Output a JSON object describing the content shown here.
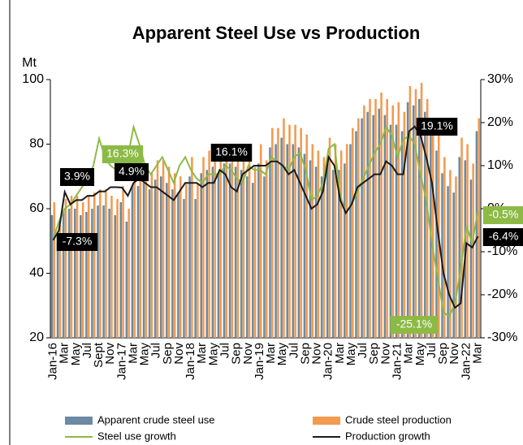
{
  "chart_data": {
    "type": "bar-line",
    "title": "Apparent Steel Use vs Production",
    "y_label": "Mt",
    "categories": [
      "Jan-16",
      null,
      "Mar",
      null,
      "May",
      null,
      "Jul",
      null,
      "Sept",
      null,
      "Nov",
      null,
      "Jan-17",
      null,
      "Mar",
      null,
      "May",
      null,
      "Jul",
      null,
      "Sep",
      null,
      "Nov",
      null,
      "Jan-18",
      null,
      "Mar",
      null,
      "May",
      null,
      "Jul",
      null,
      "Sep",
      null,
      "Nov",
      null,
      "Jan-19",
      null,
      "Mar",
      null,
      "May",
      null,
      "Jul",
      null,
      "Sep",
      null,
      "Nov",
      null,
      "Jan-20",
      null,
      "Mar",
      null,
      "May",
      null,
      "Jul",
      null,
      "Sep",
      null,
      "Nov",
      null,
      "Jan-21",
      null,
      "Mar",
      null,
      "May",
      null,
      "Jul",
      null,
      "Sep",
      null,
      "Nov",
      null,
      "Jan-22",
      null,
      "Mar"
    ],
    "series": [
      {
        "name": "Apparent crude steel use",
        "kind": "bar",
        "color": "#6b8aa3",
        "values": [
          58,
          50,
          59,
          60,
          60,
          58,
          59,
          60,
          61,
          61,
          60,
          58,
          62,
          56,
          67,
          67,
          68,
          66,
          69,
          70,
          68,
          66,
          65,
          63,
          70,
          63,
          71,
          72,
          73,
          71,
          74,
          74,
          73,
          72,
          70,
          68,
          74,
          70,
          79,
          80,
          82,
          80,
          80,
          79,
          77,
          75,
          73,
          70,
          76,
          72,
          72,
          74,
          80,
          84,
          88,
          90,
          89,
          91,
          89,
          86,
          86,
          84,
          93,
          92,
          94,
          90,
          84,
          78,
          71,
          67,
          65,
          76,
          75,
          69,
          84
        ]
      },
      {
        "name": "Crude steel production",
        "kind": "bar",
        "color": "#f39a4f",
        "values": [
          62,
          55,
          63,
          64,
          64,
          62,
          64,
          65,
          66,
          66,
          64,
          63,
          67,
          60,
          72,
          72,
          74,
          71,
          75,
          75,
          73,
          71,
          70,
          68,
          76,
          68,
          76,
          78,
          79,
          77,
          80,
          80,
          79,
          78,
          76,
          73,
          80,
          75,
          85,
          85,
          88,
          86,
          86,
          85,
          83,
          80,
          78,
          76,
          82,
          80,
          78,
          80,
          85,
          88,
          92,
          94,
          94,
          96,
          94,
          92,
          93,
          90,
          98,
          97,
          99,
          94,
          88,
          83,
          76,
          72,
          70,
          82,
          80,
          74,
          88
        ]
      },
      {
        "name": "Steel use growth",
        "kind": "line",
        "axis": "y2",
        "color": "#8dba46",
        "values": [
          -7,
          -3,
          0,
          1,
          3,
          5,
          7,
          10,
          16.3,
          12,
          10,
          9,
          9,
          12,
          19,
          15,
          10,
          8,
          10,
          12,
          9,
          6,
          10,
          12,
          9,
          7,
          6,
          8,
          8,
          8,
          10,
          9,
          7,
          6,
          10,
          9,
          9,
          8,
          12,
          11,
          10,
          9,
          12,
          13,
          9,
          2,
          3,
          6,
          14,
          15,
          3,
          -1,
          1,
          4,
          7,
          10,
          13,
          15,
          19,
          17,
          12,
          16,
          17,
          15,
          8,
          2,
          -8,
          -16,
          -24,
          -25.1,
          -22,
          -14,
          -4,
          -8,
          -0.5
        ]
      },
      {
        "name": "Production growth",
        "kind": "line",
        "axis": "y2",
        "color": "#1a1a1a",
        "values": [
          -7.3,
          -5,
          3.9,
          1,
          2,
          2,
          3,
          3,
          4,
          4,
          5,
          5,
          4.9,
          3,
          6,
          7,
          6,
          5,
          5,
          4,
          3,
          2,
          4,
          6,
          6,
          6,
          5,
          6,
          6,
          9,
          8,
          5,
          4,
          8,
          9,
          10,
          10,
          10,
          11,
          11,
          10,
          8,
          9,
          6,
          3,
          0,
          1,
          4,
          12,
          10,
          2,
          -1,
          1,
          5,
          6,
          7,
          8,
          8,
          11,
          10,
          8,
          8,
          18,
          19.1,
          17,
          12,
          6,
          -5,
          -15,
          -20,
          -23,
          -22,
          -8,
          -9,
          -6.4
        ]
      }
    ],
    "ylim": [
      20,
      100
    ],
    "yticks": [
      20,
      40,
      60,
      80,
      100
    ],
    "y2lim": [
      -30,
      30
    ],
    "y2ticks": [
      {
        "value": 30,
        "label": "30%"
      },
      {
        "value": 20,
        "label": "20%"
      },
      {
        "value": 10,
        "label": "10%"
      },
      {
        "value": 0,
        "label": "0%"
      },
      {
        "value": -10,
        "label": "-10%"
      },
      {
        "value": -20,
        "label": "-20%"
      },
      {
        "value": -30,
        "label": "-30%"
      }
    ],
    "annotations": [
      {
        "text": "-7.3%",
        "box": "#000000"
      },
      {
        "text": "3.9%",
        "box": "#000000"
      },
      {
        "text": "16.3%",
        "box": "#8dba46"
      },
      {
        "text": "4.9%",
        "box": "#000000"
      },
      {
        "text": "16.1%",
        "box": "#000000"
      },
      {
        "text": "19.1%",
        "box": "#000000"
      },
      {
        "text": "-25.1%",
        "box": "#8dba46"
      },
      {
        "text": "-0.5%",
        "box": "#8dba46"
      },
      {
        "text": "-6.4%",
        "box": "#000000"
      }
    ],
    "legend": "bottom"
  }
}
